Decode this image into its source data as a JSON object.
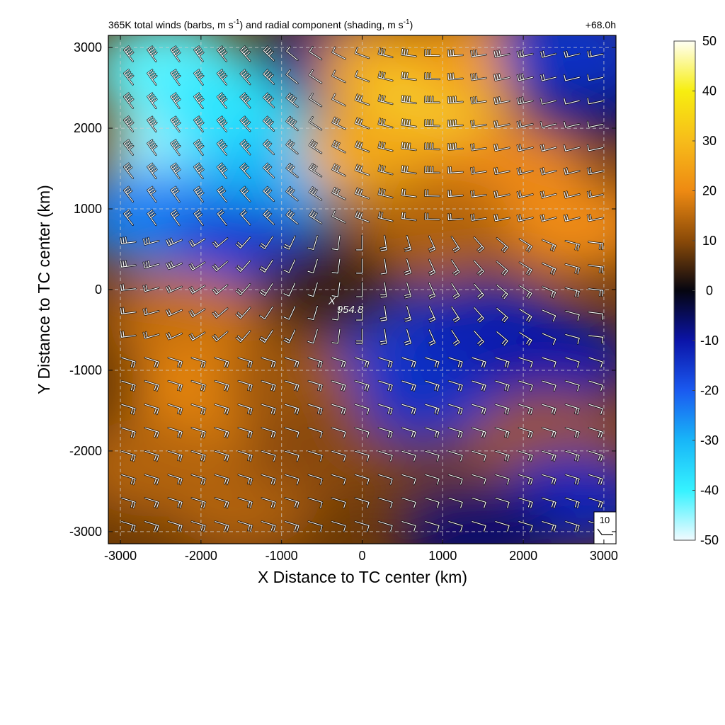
{
  "chart_data": {
    "type": "heatmap",
    "title_left_prefix": "365K total winds (barbs, m s",
    "title_left_mid": ") and radial component (shading, m s",
    "title_left_sup": "-1",
    "title_left_close": ")",
    "title_right": "+68.0h",
    "xlabel": "X Distance to TC center (km)",
    "ylabel": "Y Distance to TC center (km)",
    "xlim": [
      -3150,
      3150
    ],
    "ylim": [
      -3150,
      3150
    ],
    "xticks": [
      -3000,
      -2000,
      -1000,
      0,
      1000,
      2000,
      3000
    ],
    "yticks": [
      -3000,
      -2000,
      -1000,
      0,
      1000,
      2000,
      3000
    ],
    "xtick_labels": [
      "-3000",
      "-2000",
      "-1000",
      "0",
      "1000",
      "2000",
      "3000"
    ],
    "ytick_labels": [
      "-3000",
      "-2000",
      "-1000",
      "0",
      "1000",
      "2000",
      "3000"
    ],
    "grid": true,
    "colorbar": {
      "range": [
        -50,
        50
      ],
      "ticks": [
        "50",
        "40",
        "30",
        "20",
        "10",
        "0",
        "-10",
        "-20",
        "-30",
        "-40",
        "-50"
      ],
      "stops": [
        {
          "v": -50,
          "color": "#f2fbff"
        },
        {
          "v": -40,
          "color": "#35f2ff"
        },
        {
          "v": -30,
          "color": "#18b6f8"
        },
        {
          "v": -20,
          "color": "#1a5af0"
        },
        {
          "v": -10,
          "color": "#0b14a8"
        },
        {
          "v": 0,
          "color": "#050510"
        },
        {
          "v": 10,
          "color": "#8a4a08"
        },
        {
          "v": 20,
          "color": "#ee8a12"
        },
        {
          "v": 30,
          "color": "#f7bc1a"
        },
        {
          "v": 40,
          "color": "#f7ee10"
        },
        {
          "v": 50,
          "color": "#fffff4"
        }
      ]
    },
    "radial_wind_regions": [
      {
        "x": -2400,
        "y": 2700,
        "value": -42
      },
      {
        "x": -2200,
        "y": 1700,
        "value": -46
      },
      {
        "x": -1600,
        "y": 2200,
        "value": -38
      },
      {
        "x": -1200,
        "y": 1300,
        "value": -30
      },
      {
        "x": -2600,
        "y": 900,
        "value": -24
      },
      {
        "x": -1400,
        "y": 500,
        "value": -16
      },
      {
        "x": -300,
        "y": 2800,
        "value": -8
      },
      {
        "x": 400,
        "y": 2700,
        "value": 26
      },
      {
        "x": 800,
        "y": 2000,
        "value": 42
      },
      {
        "x": 200,
        "y": 1700,
        "value": 26
      },
      {
        "x": 1500,
        "y": 2800,
        "value": 24
      },
      {
        "x": 1800,
        "y": 1500,
        "value": 20
      },
      {
        "x": 2600,
        "y": 800,
        "value": 20
      },
      {
        "x": 900,
        "y": 800,
        "value": 14
      },
      {
        "x": 2800,
        "y": 2400,
        "value": -6
      },
      {
        "x": 2600,
        "y": 3000,
        "value": -14
      },
      {
        "x": -2200,
        "y": -400,
        "value": 16
      },
      {
        "x": -1900,
        "y": -1300,
        "value": 19
      },
      {
        "x": -2600,
        "y": -2200,
        "value": 14
      },
      {
        "x": -1500,
        "y": -2600,
        "value": 14
      },
      {
        "x": -800,
        "y": -1200,
        "value": 12
      },
      {
        "x": -500,
        "y": -2000,
        "value": 10
      },
      {
        "x": 600,
        "y": -600,
        "value": -16
      },
      {
        "x": 900,
        "y": -1300,
        "value": -14
      },
      {
        "x": 1600,
        "y": -500,
        "value": -12
      },
      {
        "x": 2400,
        "y": -900,
        "value": -10
      },
      {
        "x": 1100,
        "y": -2400,
        "value": 8
      },
      {
        "x": 2300,
        "y": -1900,
        "value": 12
      },
      {
        "x": 2600,
        "y": -2600,
        "value": -12
      },
      {
        "x": 1400,
        "y": -3000,
        "value": -6
      },
      {
        "x": -400,
        "y": 0,
        "value": 4
      }
    ],
    "center_label": "954.8",
    "center_position": {
      "x": -350,
      "y": -200
    },
    "reference_barb_label": "10",
    "barb_grid": {
      "start": -2900,
      "step": 290,
      "count": 21
    }
  }
}
